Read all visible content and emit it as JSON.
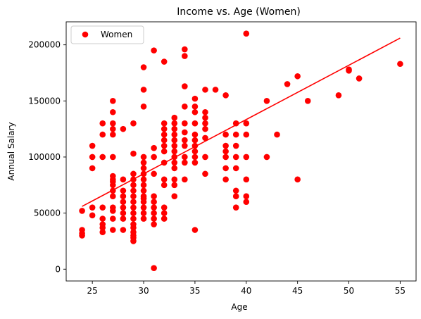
{
  "chart_data": {
    "type": "scatter",
    "title": "Income vs. Age (Women)",
    "xlabel": "Age",
    "ylabel": "Annual Salary",
    "xlim": [
      22.45,
      56.55
    ],
    "ylim": [
      -10500,
      220500
    ],
    "xticks": [
      25,
      30,
      35,
      40,
      45,
      50,
      55
    ],
    "yticks": [
      0,
      50000,
      100000,
      150000,
      200000
    ],
    "grid": false,
    "legend": {
      "position": "upper-left",
      "entries": [
        "Women"
      ]
    },
    "series": [
      {
        "name": "Women",
        "color": "#ff0000",
        "points": [
          [
            24,
            30000
          ],
          [
            24,
            32000
          ],
          [
            24,
            35000
          ],
          [
            24,
            52000
          ],
          [
            25,
            48000
          ],
          [
            25,
            55000
          ],
          [
            25,
            90000
          ],
          [
            25,
            100000
          ],
          [
            25,
            110000
          ],
          [
            26,
            33000
          ],
          [
            26,
            37000
          ],
          [
            26,
            40000
          ],
          [
            26,
            45000
          ],
          [
            26,
            55000
          ],
          [
            26,
            100000
          ],
          [
            26,
            120000
          ],
          [
            26,
            130000
          ],
          [
            27,
            35000
          ],
          [
            27,
            45000
          ],
          [
            27,
            52000
          ],
          [
            27,
            55000
          ],
          [
            27,
            65000
          ],
          [
            27,
            70000
          ],
          [
            27,
            75000
          ],
          [
            27,
            78000
          ],
          [
            27,
            80000
          ],
          [
            27,
            83000
          ],
          [
            27,
            100000
          ],
          [
            27,
            120000
          ],
          [
            27,
            125000
          ],
          [
            27,
            130000
          ],
          [
            27,
            140000
          ],
          [
            27,
            150000
          ],
          [
            28,
            35000
          ],
          [
            28,
            45000
          ],
          [
            28,
            50000
          ],
          [
            28,
            55000
          ],
          [
            28,
            60000
          ],
          [
            28,
            65000
          ],
          [
            28,
            70000
          ],
          [
            28,
            80000
          ],
          [
            28,
            125000
          ],
          [
            29,
            25000
          ],
          [
            29,
            28000
          ],
          [
            29,
            30000
          ],
          [
            29,
            33000
          ],
          [
            29,
            37000
          ],
          [
            29,
            40000
          ],
          [
            29,
            45000
          ],
          [
            29,
            50000
          ],
          [
            29,
            55000
          ],
          [
            29,
            60000
          ],
          [
            29,
            65000
          ],
          [
            29,
            70000
          ],
          [
            29,
            75000
          ],
          [
            29,
            80000
          ],
          [
            29,
            85000
          ],
          [
            29,
            103000
          ],
          [
            29,
            130000
          ],
          [
            30,
            45000
          ],
          [
            30,
            50000
          ],
          [
            30,
            55000
          ],
          [
            30,
            60000
          ],
          [
            30,
            63000
          ],
          [
            30,
            65000
          ],
          [
            30,
            70000
          ],
          [
            30,
            75000
          ],
          [
            30,
            80000
          ],
          [
            30,
            85000
          ],
          [
            30,
            90000
          ],
          [
            30,
            95000
          ],
          [
            30,
            100000
          ],
          [
            30,
            145000
          ],
          [
            30,
            160000
          ],
          [
            30,
            180000
          ],
          [
            31,
            1000
          ],
          [
            31,
            40000
          ],
          [
            31,
            45000
          ],
          [
            31,
            50000
          ],
          [
            31,
            55000
          ],
          [
            31,
            60000
          ],
          [
            31,
            65000
          ],
          [
            31,
            85000
          ],
          [
            31,
            100000
          ],
          [
            31,
            108000
          ],
          [
            31,
            195000
          ],
          [
            32,
            45000
          ],
          [
            32,
            50000
          ],
          [
            32,
            55000
          ],
          [
            32,
            75000
          ],
          [
            32,
            80000
          ],
          [
            32,
            95000
          ],
          [
            32,
            105000
          ],
          [
            32,
            110000
          ],
          [
            32,
            115000
          ],
          [
            32,
            120000
          ],
          [
            32,
            125000
          ],
          [
            32,
            130000
          ],
          [
            32,
            185000
          ],
          [
            33,
            65000
          ],
          [
            33,
            75000
          ],
          [
            33,
            80000
          ],
          [
            33,
            90000
          ],
          [
            33,
            95000
          ],
          [
            33,
            100000
          ],
          [
            33,
            105000
          ],
          [
            33,
            110000
          ],
          [
            33,
            115000
          ],
          [
            33,
            120000
          ],
          [
            33,
            125000
          ],
          [
            33,
            130000
          ],
          [
            33,
            135000
          ],
          [
            34,
            80000
          ],
          [
            34,
            95000
          ],
          [
            34,
            100000
          ],
          [
            34,
            110000
          ],
          [
            34,
            115000
          ],
          [
            34,
            122000
          ],
          [
            34,
            130000
          ],
          [
            34,
            145000
          ],
          [
            34,
            163000
          ],
          [
            34,
            190000
          ],
          [
            34,
            196000
          ],
          [
            35,
            35000
          ],
          [
            35,
            95000
          ],
          [
            35,
            100000
          ],
          [
            35,
            105000
          ],
          [
            35,
            110000
          ],
          [
            35,
            115000
          ],
          [
            35,
            120000
          ],
          [
            35,
            130000
          ],
          [
            35,
            140000
          ],
          [
            35,
            145000
          ],
          [
            35,
            152000
          ],
          [
            36,
            85000
          ],
          [
            36,
            100000
          ],
          [
            36,
            117000
          ],
          [
            36,
            125000
          ],
          [
            36,
            130000
          ],
          [
            36,
            135000
          ],
          [
            36,
            140000
          ],
          [
            36,
            160000
          ],
          [
            37,
            160000
          ],
          [
            38,
            80000
          ],
          [
            38,
            90000
          ],
          [
            38,
            100000
          ],
          [
            38,
            105000
          ],
          [
            38,
            110000
          ],
          [
            38,
            120000
          ],
          [
            38,
            155000
          ],
          [
            39,
            55000
          ],
          [
            39,
            65000
          ],
          [
            39,
            70000
          ],
          [
            39,
            90000
          ],
          [
            39,
            100000
          ],
          [
            39,
            110000
          ],
          [
            39,
            120000
          ],
          [
            39,
            130000
          ],
          [
            40,
            60000
          ],
          [
            40,
            65000
          ],
          [
            40,
            80000
          ],
          [
            40,
            100000
          ],
          [
            40,
            120000
          ],
          [
            40,
            130000
          ],
          [
            40,
            210000
          ],
          [
            42,
            100000
          ],
          [
            42,
            150000
          ],
          [
            43,
            120000
          ],
          [
            44,
            165000
          ],
          [
            45,
            80000
          ],
          [
            45,
            172000
          ],
          [
            46,
            150000
          ],
          [
            49,
            155000
          ],
          [
            50,
            177000
          ],
          [
            50,
            178000
          ],
          [
            51,
            170000
          ],
          [
            55,
            183000
          ]
        ]
      }
    ],
    "trendline": {
      "color": "#ff0000",
      "x": [
        24,
        55
      ],
      "y": [
        56000,
        206000
      ]
    }
  }
}
